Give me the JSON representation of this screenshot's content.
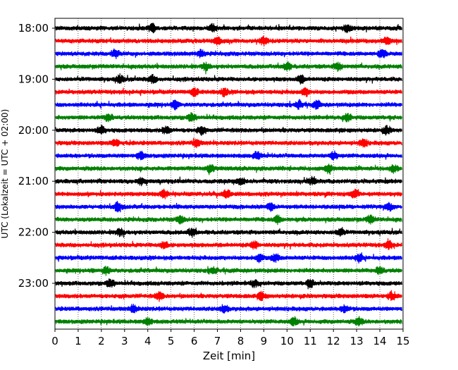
{
  "chart_data": {
    "type": "line",
    "title": "",
    "xlabel": "Zeit  [min]",
    "ylabel": "UTC (Lokalzeit = UTC + 02:00)",
    "xlim": [
      0,
      15
    ],
    "xticks": [
      "0",
      "1",
      "2",
      "3",
      "4",
      "5",
      "6",
      "7",
      "8",
      "9",
      "10",
      "11",
      "12",
      "13",
      "14",
      "15"
    ],
    "ytick_labels": [
      "18:00",
      "19:00",
      "20:00",
      "21:00",
      "22:00",
      "23:00"
    ],
    "grid": "vertical dotted",
    "trace_colors": [
      "#000000",
      "#ff0000",
      "#0000ff",
      "#008000"
    ],
    "series": [
      {
        "time": "18:00",
        "color": "#000000",
        "bursts": [
          4.2,
          6.8,
          12.6
        ]
      },
      {
        "time": "18:15",
        "color": "#ff0000",
        "bursts": [
          7.0,
          9.0,
          14.3
        ]
      },
      {
        "time": "18:30",
        "color": "#0000ff",
        "bursts": [
          2.6,
          6.3,
          14.1
        ]
      },
      {
        "time": "18:45",
        "color": "#008000",
        "bursts": [
          6.5,
          10.0,
          12.2
        ]
      },
      {
        "time": "19:00",
        "color": "#000000",
        "bursts": [
          2.8,
          4.2,
          10.6
        ]
      },
      {
        "time": "19:15",
        "color": "#ff0000",
        "bursts": [
          6.0,
          7.3,
          10.8
        ]
      },
      {
        "time": "19:30",
        "color": "#0000ff",
        "bursts": [
          5.2,
          10.5,
          11.3
        ]
      },
      {
        "time": "19:45",
        "color": "#008000",
        "bursts": [
          2.3,
          5.9,
          12.6
        ]
      },
      {
        "time": "20:00",
        "color": "#000000",
        "bursts": [
          2.0,
          4.8,
          6.3,
          14.3
        ]
      },
      {
        "time": "20:15",
        "color": "#ff0000",
        "bursts": [
          2.6,
          6.1,
          13.3
        ]
      },
      {
        "time": "20:30",
        "color": "#0000ff",
        "bursts": [
          3.7,
          8.7,
          12.0
        ]
      },
      {
        "time": "20:45",
        "color": "#008000",
        "bursts": [
          6.7,
          11.8,
          14.6
        ]
      },
      {
        "time": "21:00",
        "color": "#000000",
        "bursts": [
          3.7,
          8.0,
          11.1
        ]
      },
      {
        "time": "21:15",
        "color": "#ff0000",
        "bursts": [
          4.7,
          7.4,
          12.9
        ]
      },
      {
        "time": "21:30",
        "color": "#0000ff",
        "bursts": [
          2.7,
          9.3,
          14.4
        ]
      },
      {
        "time": "21:45",
        "color": "#008000",
        "bursts": [
          5.4,
          9.6,
          13.6
        ]
      },
      {
        "time": "22:00",
        "color": "#000000",
        "bursts": [
          2.8,
          5.9,
          12.3
        ]
      },
      {
        "time": "22:15",
        "color": "#ff0000",
        "bursts": [
          4.7,
          8.6,
          14.4
        ]
      },
      {
        "time": "22:30",
        "color": "#0000ff",
        "bursts": [
          8.8,
          9.5,
          13.1
        ]
      },
      {
        "time": "22:45",
        "color": "#008000",
        "bursts": [
          2.2,
          6.8,
          14.0
        ]
      },
      {
        "time": "23:00",
        "color": "#000000",
        "bursts": [
          2.4,
          8.6,
          11.0
        ]
      },
      {
        "time": "23:15",
        "color": "#ff0000",
        "bursts": [
          4.5,
          8.9,
          14.5
        ]
      },
      {
        "time": "23:30",
        "color": "#0000ff",
        "bursts": [
          3.4,
          7.3,
          12.5
        ]
      },
      {
        "time": "23:45",
        "color": "#008000",
        "bursts": [
          4.0,
          10.3,
          13.1
        ]
      }
    ]
  }
}
